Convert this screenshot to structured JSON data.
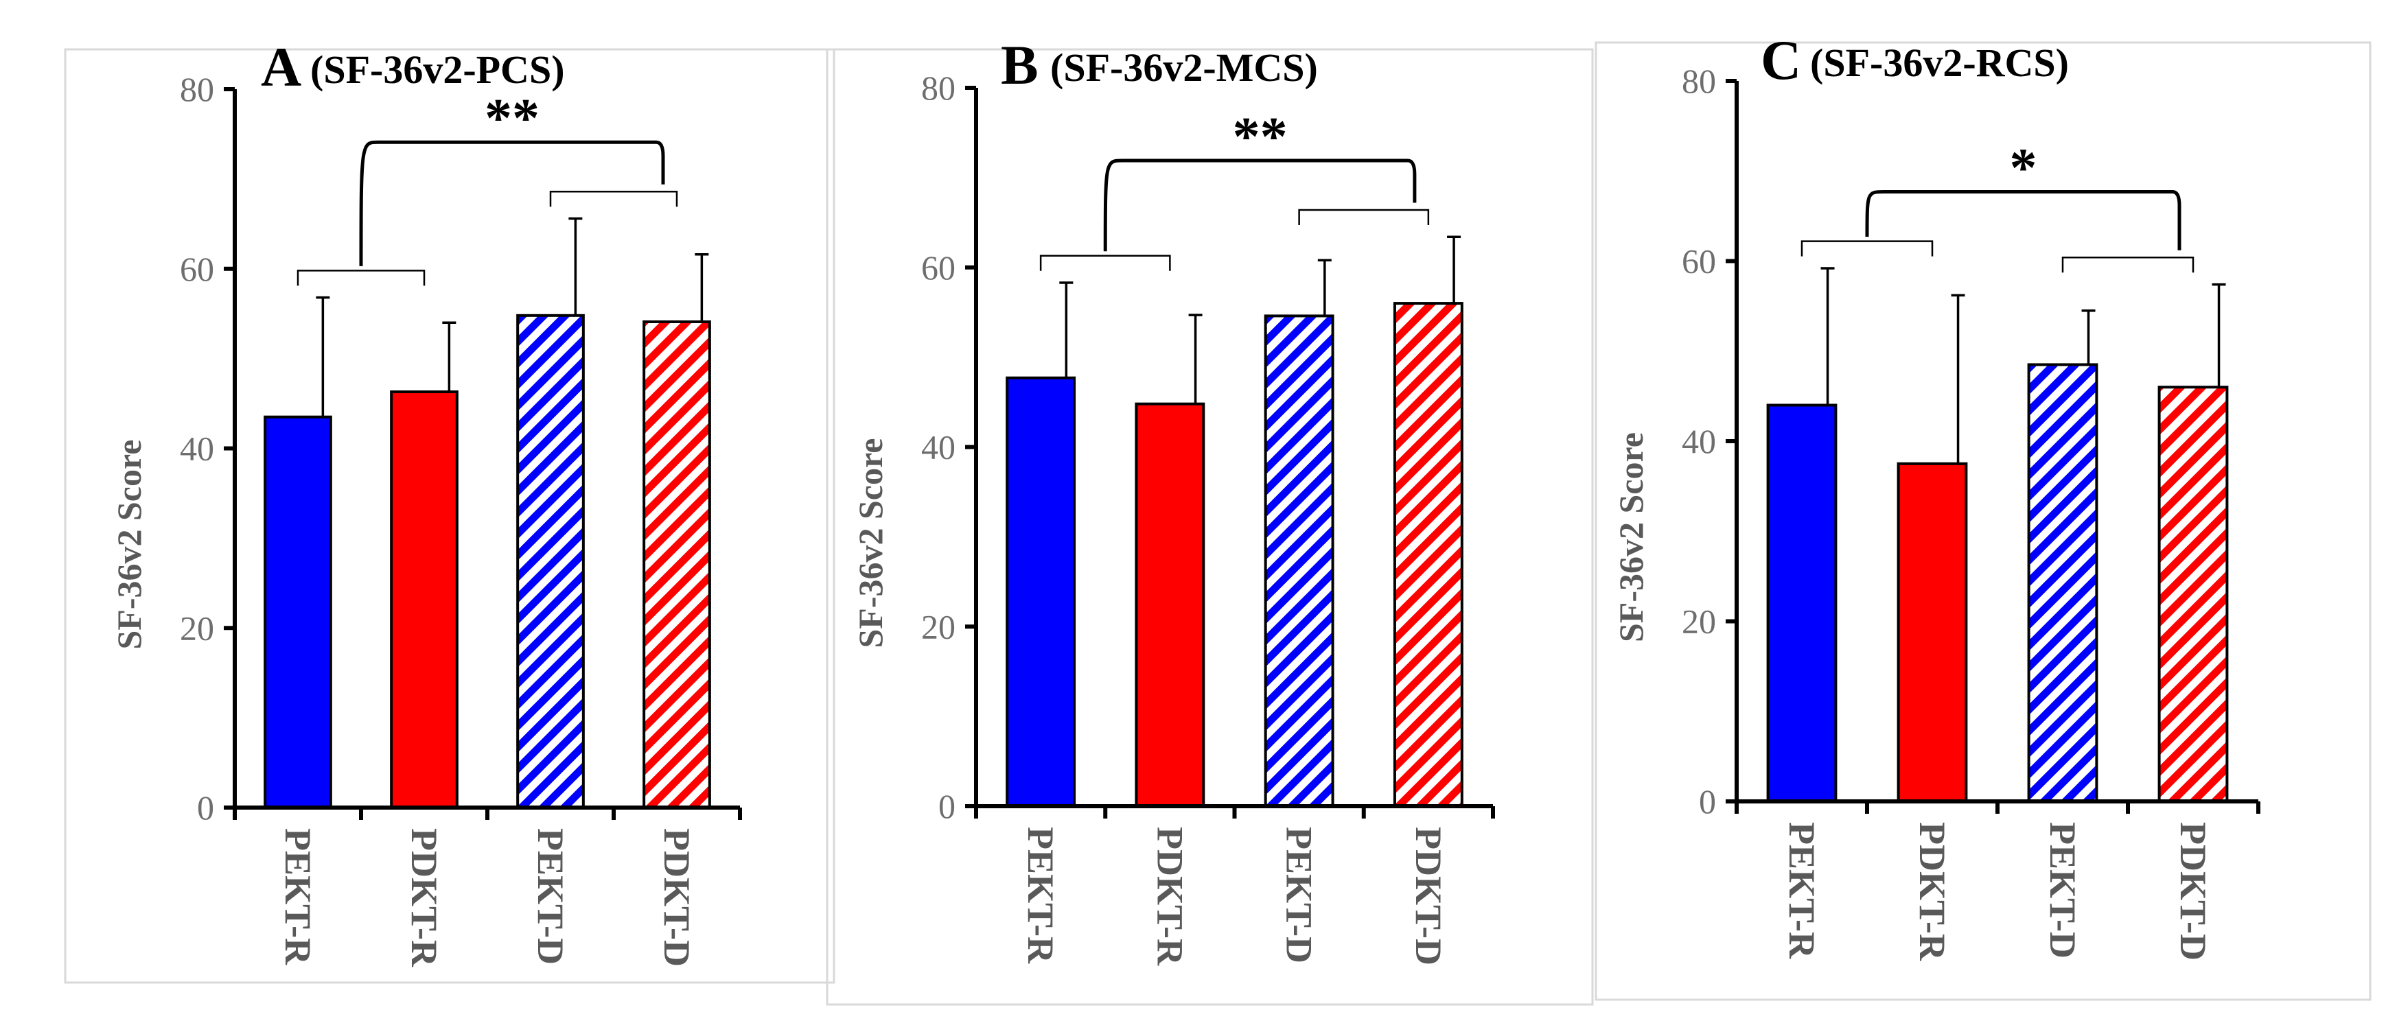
{
  "chart_data": [
    {
      "type": "bar",
      "panel_letter": "A",
      "title": "(SF-36v2-PCS)",
      "ylabel": "SF-36v2 Score",
      "xlabel": "",
      "ylim": [
        0,
        80
      ],
      "yticks": [
        "0",
        "20",
        "40",
        "60",
        "80"
      ],
      "categories": [
        "PEKT-R",
        "PDKT-R",
        "PEKT-D",
        "PDKT-D"
      ],
      "values": [
        43.5,
        46.3,
        54.8,
        54.1
      ],
      "error_upper": [
        56.8,
        54.0,
        65.6,
        61.6
      ],
      "bar_styles": [
        "solid-blue",
        "solid-red",
        "hatched-blue",
        "hatched-red"
      ],
      "comparisons": [
        {
          "between": [
            "PEKT-R",
            "PDKT-R"
          ],
          "label": ""
        },
        {
          "between": [
            "PEKT-D",
            "PDKT-D"
          ],
          "label": ""
        },
        {
          "between": [
            "R group",
            "D group"
          ],
          "label": "**"
        }
      ]
    },
    {
      "type": "bar",
      "panel_letter": "B",
      "title": "(SF-36v2-MCS)",
      "ylabel": "SF-36v2 Score",
      "xlabel": "",
      "ylim": [
        0,
        80
      ],
      "yticks": [
        "0",
        "20",
        "40",
        "60",
        "80"
      ],
      "categories": [
        "PEKT-R",
        "PDKT-R",
        "PEKT-D",
        "PDKT-D"
      ],
      "values": [
        47.7,
        44.8,
        54.6,
        56.0
      ],
      "error_upper": [
        58.3,
        54.7,
        60.8,
        63.4
      ],
      "bar_styles": [
        "solid-blue",
        "solid-red",
        "hatched-blue",
        "hatched-red"
      ],
      "comparisons": [
        {
          "between": [
            "PEKT-R",
            "PDKT-R"
          ],
          "label": ""
        },
        {
          "between": [
            "PEKT-D",
            "PDKT-D"
          ],
          "label": ""
        },
        {
          "between": [
            "R group",
            "D group"
          ],
          "label": "**"
        }
      ]
    },
    {
      "type": "bar",
      "panel_letter": "C",
      "title": "(SF-36v2-RCS)",
      "ylabel": "SF-36v2 Score",
      "xlabel": "",
      "ylim": [
        0,
        80
      ],
      "yticks": [
        "0",
        "20",
        "40",
        "60",
        "80"
      ],
      "categories": [
        "PEKT-R",
        "PDKT-R",
        "PEKT-D",
        "PDKT-D"
      ],
      "values": [
        44.0,
        37.5,
        48.5,
        46.0
      ],
      "error_upper": [
        59.2,
        56.2,
        54.5,
        57.4
      ],
      "bar_styles": [
        "solid-blue",
        "solid-red",
        "hatched-blue",
        "hatched-red"
      ],
      "comparisons": [
        {
          "between": [
            "PEKT-R",
            "PDKT-R"
          ],
          "label": ""
        },
        {
          "between": [
            "PEKT-D",
            "PDKT-D"
          ],
          "label": ""
        },
        {
          "between": [
            "R group",
            "D group"
          ],
          "label": "*"
        }
      ]
    }
  ],
  "colors": {
    "blue": "#0000ff",
    "red": "#ff0000",
    "axis": "#000000",
    "tick_label": "#6e6e6e",
    "category_label": "#595959"
  }
}
